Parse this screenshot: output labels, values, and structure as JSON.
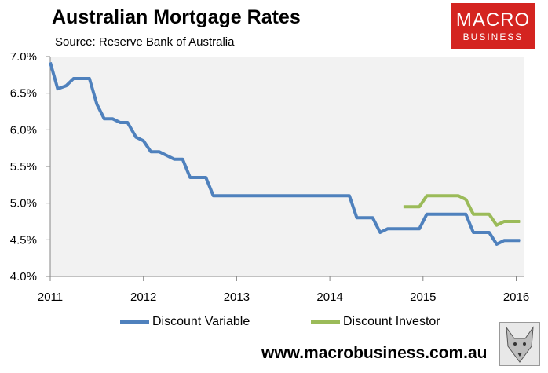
{
  "title": "Australian Mortgage Rates",
  "subtitle": "Source: Reserve Bank of Australia",
  "logo": {
    "line1": "MACRO",
    "line2": "BUSINESS",
    "color": "#d42420"
  },
  "footer_url": "www.macrobusiness.com.au",
  "chart_data": {
    "type": "line",
    "xlim": [
      2011,
      2016.08
    ],
    "ylim": [
      4.0,
      7.0
    ],
    "x_ticks": [
      2011,
      2012,
      2013,
      2014,
      2015,
      2016
    ],
    "x_tick_labels": [
      "2011",
      "2012",
      "2013",
      "2014",
      "2015",
      "2016"
    ],
    "y_ticks": [
      4.0,
      4.5,
      5.0,
      5.5,
      6.0,
      6.5,
      7.0
    ],
    "y_tick_labels": [
      "4.0%",
      "4.5%",
      "5.0%",
      "5.5%",
      "6.0%",
      "6.5%",
      "7.0%"
    ],
    "grid": false,
    "legend": "bottom",
    "series": [
      {
        "name": "Discount Variable",
        "color": "#4f81bd",
        "x": [
          2011.0,
          2011.08,
          2011.17,
          2011.25,
          2011.33,
          2011.42,
          2011.5,
          2011.58,
          2011.67,
          2011.75,
          2011.83,
          2011.92,
          2012.0,
          2012.08,
          2012.17,
          2012.25,
          2012.33,
          2012.42,
          2012.5,
          2012.58,
          2012.67,
          2012.75,
          2013.0,
          2013.5,
          2014.0,
          2014.21,
          2014.29,
          2014.38,
          2014.46,
          2014.54,
          2014.62,
          2014.79,
          2014.96,
          2015.04,
          2015.12,
          2015.21,
          2015.29,
          2015.38,
          2015.46,
          2015.54,
          2015.62,
          2015.71,
          2015.79,
          2015.87,
          2015.96,
          2016.04
        ],
        "values": [
          6.92,
          6.56,
          6.6,
          6.7,
          6.7,
          6.7,
          6.35,
          6.15,
          6.15,
          6.1,
          6.1,
          5.9,
          5.85,
          5.7,
          5.7,
          5.65,
          5.6,
          5.6,
          5.35,
          5.35,
          5.35,
          5.1,
          5.1,
          5.1,
          5.1,
          5.1,
          4.8,
          4.8,
          4.8,
          4.6,
          4.65,
          4.65,
          4.65,
          4.85,
          4.85,
          4.85,
          4.85,
          4.85,
          4.85,
          4.6,
          4.6,
          4.6,
          4.44,
          4.49,
          4.49,
          4.49
        ]
      },
      {
        "name": "Discount Investor",
        "color": "#9bbb59",
        "x": [
          2014.79,
          2014.96,
          2015.04,
          2015.12,
          2015.21,
          2015.29,
          2015.38,
          2015.46,
          2015.54,
          2015.62,
          2015.71,
          2015.79,
          2015.87,
          2015.96,
          2016.04
        ],
        "values": [
          4.95,
          4.95,
          5.1,
          5.1,
          5.1,
          5.1,
          5.1,
          5.05,
          4.85,
          4.85,
          4.85,
          4.7,
          4.75,
          4.75,
          4.75
        ]
      }
    ]
  }
}
